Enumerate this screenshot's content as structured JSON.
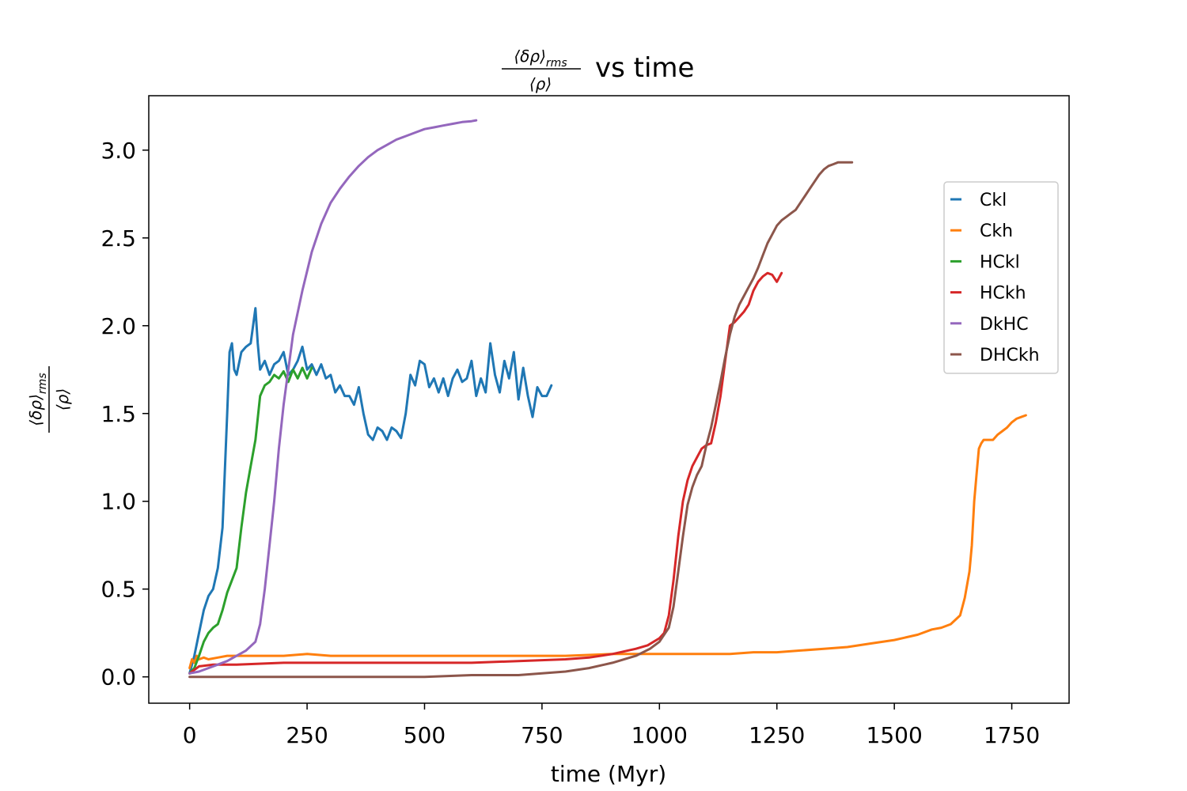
{
  "chart_data": {
    "type": "line",
    "title": "vs time",
    "title_fraction": {
      "numerator": "⟨δρ⟩",
      "numerator_sub": "rms",
      "denominator": "⟨ρ⟩"
    },
    "xlabel": "time (Myr)",
    "ylabel_fraction": {
      "numerator": "⟨δρ⟩",
      "numerator_sub": "rms",
      "denominator": "⟨ρ⟩"
    },
    "xlim": [
      -87,
      1872
    ],
    "ylim": [
      -0.15,
      3.31
    ],
    "xticks": [
      0,
      250,
      500,
      750,
      1000,
      1250,
      1500,
      1750
    ],
    "xtick_labels": [
      "0",
      "250",
      "500",
      "750",
      "1000",
      "1250",
      "1500",
      "1750"
    ],
    "yticks": [
      0.0,
      0.5,
      1.0,
      1.5,
      2.0,
      2.5,
      3.0
    ],
    "ytick_labels": [
      "0.0",
      "0.5",
      "1.0",
      "1.5",
      "2.0",
      "2.5",
      "3.0"
    ],
    "grid": false,
    "legend_position": "right",
    "series": [
      {
        "name": "Ckl",
        "color": "#1f77b4",
        "x": [
          0,
          10,
          20,
          30,
          40,
          50,
          60,
          70,
          80,
          85,
          90,
          95,
          100,
          110,
          120,
          130,
          140,
          145,
          150,
          160,
          170,
          180,
          190,
          200,
          210,
          220,
          230,
          240,
          250,
          260,
          270,
          280,
          290,
          300,
          310,
          320,
          330,
          340,
          350,
          360,
          370,
          380,
          390,
          400,
          410,
          420,
          430,
          440,
          450,
          460,
          470,
          480,
          490,
          500,
          510,
          520,
          530,
          540,
          550,
          560,
          570,
          580,
          590,
          600,
          610,
          620,
          630,
          640,
          650,
          660,
          670,
          680,
          690,
          700,
          710,
          720,
          730,
          740,
          750,
          760,
          770
        ],
        "y": [
          0.02,
          0.12,
          0.25,
          0.38,
          0.46,
          0.5,
          0.62,
          0.85,
          1.5,
          1.85,
          1.9,
          1.75,
          1.72,
          1.85,
          1.88,
          1.9,
          2.1,
          1.9,
          1.75,
          1.8,
          1.72,
          1.78,
          1.8,
          1.85,
          1.72,
          1.75,
          1.8,
          1.88,
          1.75,
          1.78,
          1.72,
          1.78,
          1.7,
          1.72,
          1.62,
          1.66,
          1.6,
          1.6,
          1.55,
          1.65,
          1.5,
          1.38,
          1.35,
          1.42,
          1.4,
          1.35,
          1.42,
          1.4,
          1.36,
          1.5,
          1.72,
          1.66,
          1.8,
          1.78,
          1.65,
          1.7,
          1.62,
          1.7,
          1.6,
          1.7,
          1.75,
          1.68,
          1.7,
          1.8,
          1.6,
          1.7,
          1.62,
          1.9,
          1.72,
          1.62,
          1.8,
          1.7,
          1.85,
          1.58,
          1.76,
          1.6,
          1.48,
          1.65,
          1.6,
          1.6,
          1.66
        ]
      },
      {
        "name": "Ckh",
        "color": "#ff7f0e",
        "x": [
          0,
          5,
          10,
          15,
          20,
          30,
          40,
          60,
          80,
          100,
          150,
          200,
          250,
          300,
          400,
          500,
          600,
          700,
          800,
          900,
          1000,
          1100,
          1150,
          1200,
          1250,
          1300,
          1350,
          1400,
          1450,
          1500,
          1550,
          1580,
          1600,
          1620,
          1640,
          1650,
          1660,
          1665,
          1670,
          1675,
          1680,
          1685,
          1690,
          1700,
          1710,
          1720,
          1730,
          1740,
          1750,
          1760,
          1770,
          1780
        ],
        "y": [
          0.05,
          0.1,
          0.08,
          0.12,
          0.1,
          0.11,
          0.1,
          0.11,
          0.12,
          0.12,
          0.12,
          0.12,
          0.13,
          0.12,
          0.12,
          0.12,
          0.12,
          0.12,
          0.12,
          0.13,
          0.13,
          0.13,
          0.13,
          0.14,
          0.14,
          0.15,
          0.16,
          0.17,
          0.19,
          0.21,
          0.24,
          0.27,
          0.28,
          0.3,
          0.35,
          0.45,
          0.6,
          0.75,
          1.0,
          1.15,
          1.3,
          1.33,
          1.35,
          1.35,
          1.35,
          1.38,
          1.4,
          1.42,
          1.45,
          1.47,
          1.48,
          1.49
        ]
      },
      {
        "name": "HCkl",
        "color": "#2ca02c",
        "x": [
          0,
          10,
          20,
          30,
          40,
          50,
          60,
          70,
          80,
          90,
          100,
          110,
          120,
          130,
          140,
          150,
          160,
          170,
          180,
          190,
          200,
          210,
          220,
          230,
          240,
          250,
          260
        ],
        "y": [
          0.02,
          0.05,
          0.12,
          0.2,
          0.25,
          0.28,
          0.3,
          0.38,
          0.48,
          0.55,
          0.62,
          0.85,
          1.05,
          1.2,
          1.35,
          1.6,
          1.66,
          1.68,
          1.72,
          1.7,
          1.74,
          1.68,
          1.75,
          1.7,
          1.76,
          1.7,
          1.76
        ]
      },
      {
        "name": "HCkh",
        "color": "#d62728",
        "x": [
          0,
          20,
          50,
          100,
          200,
          300,
          400,
          500,
          600,
          700,
          800,
          850,
          900,
          950,
          975,
          1000,
          1010,
          1020,
          1030,
          1040,
          1050,
          1060,
          1070,
          1080,
          1090,
          1100,
          1110,
          1120,
          1130,
          1140,
          1150,
          1160,
          1170,
          1180,
          1190,
          1200,
          1210,
          1220,
          1230,
          1240,
          1250,
          1260
        ],
        "y": [
          0.02,
          0.06,
          0.07,
          0.07,
          0.08,
          0.08,
          0.08,
          0.08,
          0.08,
          0.09,
          0.1,
          0.11,
          0.13,
          0.16,
          0.18,
          0.22,
          0.25,
          0.35,
          0.55,
          0.8,
          1.0,
          1.12,
          1.2,
          1.25,
          1.3,
          1.32,
          1.33,
          1.45,
          1.6,
          1.8,
          2.0,
          2.02,
          2.05,
          2.08,
          2.12,
          2.2,
          2.25,
          2.28,
          2.3,
          2.29,
          2.25,
          2.3
        ]
      },
      {
        "name": "DkHC",
        "color": "#9467bd",
        "x": [
          0,
          20,
          40,
          60,
          80,
          100,
          120,
          140,
          150,
          160,
          170,
          180,
          190,
          200,
          220,
          240,
          260,
          280,
          300,
          320,
          340,
          360,
          380,
          400,
          420,
          440,
          460,
          480,
          500,
          520,
          540,
          560,
          580,
          600,
          610
        ],
        "y": [
          0.02,
          0.03,
          0.05,
          0.07,
          0.09,
          0.12,
          0.15,
          0.2,
          0.3,
          0.5,
          0.75,
          1.0,
          1.3,
          1.55,
          1.95,
          2.2,
          2.42,
          2.58,
          2.7,
          2.78,
          2.85,
          2.91,
          2.96,
          3.0,
          3.03,
          3.06,
          3.08,
          3.1,
          3.12,
          3.13,
          3.14,
          3.15,
          3.16,
          3.165,
          3.17
        ]
      },
      {
        "name": "DHCkh",
        "color": "#8c564b",
        "x": [
          0,
          50,
          100,
          200,
          300,
          400,
          500,
          600,
          700,
          750,
          800,
          850,
          900,
          950,
          980,
          1000,
          1020,
          1030,
          1040,
          1050,
          1060,
          1070,
          1080,
          1090,
          1100,
          1110,
          1120,
          1130,
          1140,
          1150,
          1160,
          1170,
          1180,
          1190,
          1200,
          1210,
          1220,
          1230,
          1240,
          1250,
          1260,
          1270,
          1280,
          1290,
          1300,
          1310,
          1320,
          1330,
          1340,
          1350,
          1360,
          1370,
          1380,
          1390,
          1400,
          1410
        ],
        "y": [
          0.0,
          0.0,
          0.0,
          0.0,
          0.0,
          0.0,
          0.0,
          0.01,
          0.01,
          0.02,
          0.03,
          0.05,
          0.08,
          0.12,
          0.16,
          0.2,
          0.28,
          0.4,
          0.6,
          0.8,
          0.98,
          1.08,
          1.15,
          1.2,
          1.32,
          1.42,
          1.55,
          1.68,
          1.82,
          1.95,
          2.05,
          2.12,
          2.17,
          2.22,
          2.27,
          2.33,
          2.4,
          2.47,
          2.52,
          2.57,
          2.6,
          2.62,
          2.64,
          2.66,
          2.7,
          2.74,
          2.78,
          2.82,
          2.86,
          2.89,
          2.91,
          2.92,
          2.93,
          2.93,
          2.93,
          2.93
        ]
      }
    ]
  }
}
